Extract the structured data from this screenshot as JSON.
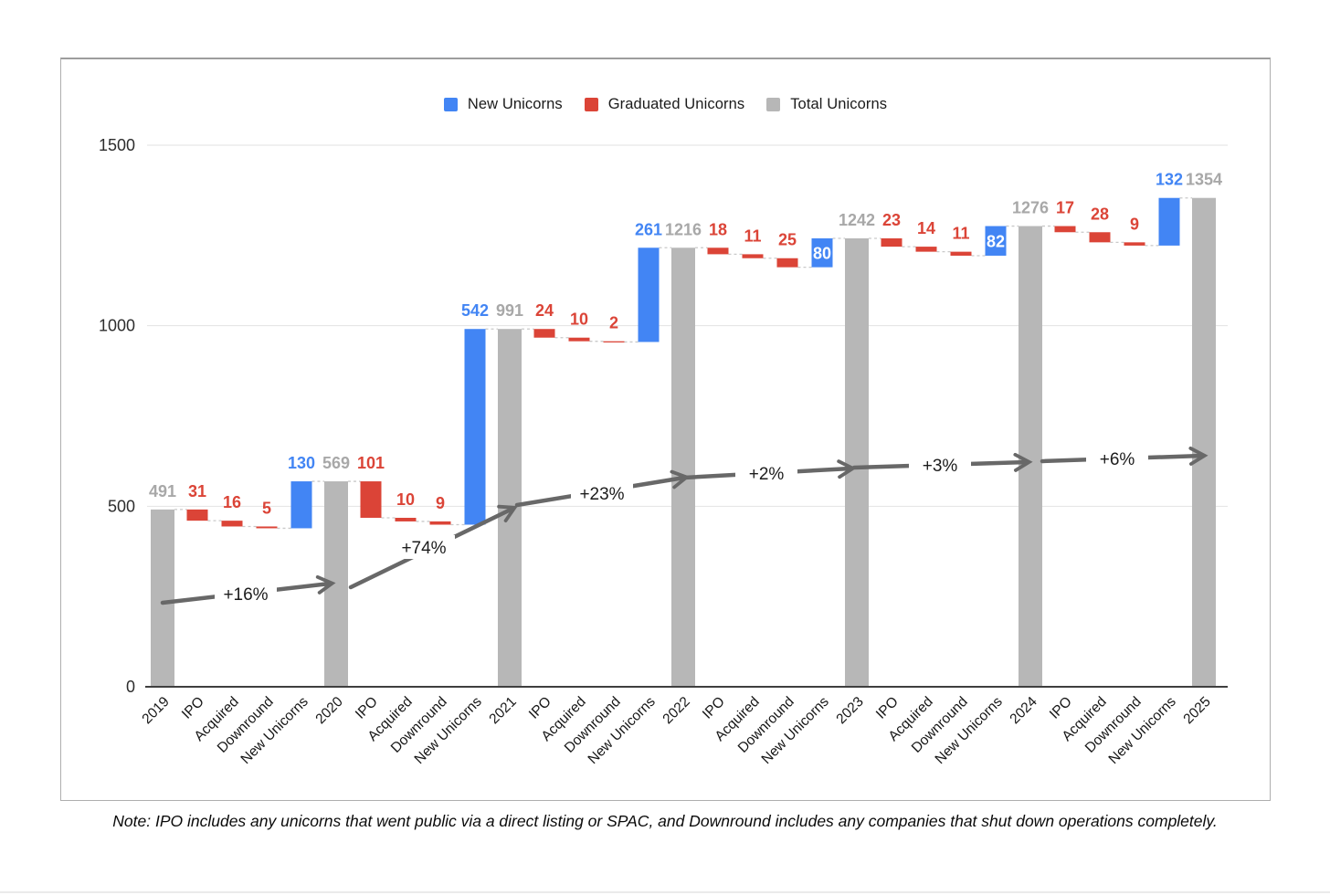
{
  "page": {
    "note": "Note: IPO includes any unicorns that went public via a direct listing or SPAC, and Downround includes any companies that shut down operations completely."
  },
  "legend": [
    {
      "label": "New Unicorns",
      "color": "#4285F4"
    },
    {
      "label": "Graduated Unicorns",
      "color": "#DB4437"
    },
    {
      "label": "Total Unicorns",
      "color": "#B7B7B7"
    }
  ],
  "chart_data": {
    "type": "bar",
    "subtype": "waterfall",
    "title": "",
    "xlabel": "",
    "ylabel": "",
    "ylim": [
      0,
      1500
    ],
    "yticks": [
      0,
      500,
      1000,
      1500
    ],
    "grid": true,
    "legend_position": "top",
    "colors": {
      "new_unicorns": "#4285F4",
      "graduated_unicorns": "#DB4437",
      "total_unicorns": "#B7B7B7",
      "total_label": "#A8A8A8",
      "new_label": "#4285F4",
      "graduated_label": "#DB4437",
      "arrow": "#686868",
      "gridline": "#e2e2e2",
      "axis": "#3f3f3f",
      "connector": "#c9c9c9"
    },
    "years": [
      {
        "year": "2019",
        "total": 491
      },
      {
        "year": "2020",
        "total": 569,
        "growth": "+16%",
        "steps": [
          {
            "label": "IPO",
            "value": 31
          },
          {
            "label": "Acquired",
            "value": 16
          },
          {
            "label": "Downround",
            "value": 5
          },
          {
            "label": "New Unicorns",
            "value": 130
          }
        ]
      },
      {
        "year": "2021",
        "total": 991,
        "growth": "+74%",
        "steps": [
          {
            "label": "IPO",
            "value": 101
          },
          {
            "label": "Acquired",
            "value": 10
          },
          {
            "label": "Downround",
            "value": 9
          },
          {
            "label": "New Unicorns",
            "value": 542
          }
        ]
      },
      {
        "year": "2022",
        "total": 1216,
        "growth": "+23%",
        "steps": [
          {
            "label": "IPO",
            "value": 24
          },
          {
            "label": "Acquired",
            "value": 10
          },
          {
            "label": "Downround",
            "value": 2
          },
          {
            "label": "New Unicorns",
            "value": 261
          }
        ]
      },
      {
        "year": "2023",
        "total": 1242,
        "growth": "+2%",
        "steps": [
          {
            "label": "IPO",
            "value": 18
          },
          {
            "label": "Acquired",
            "value": 11
          },
          {
            "label": "Downround",
            "value": 25
          },
          {
            "label": "New Unicorns",
            "value": 80
          }
        ]
      },
      {
        "year": "2024",
        "total": 1276,
        "growth": "+3%",
        "steps": [
          {
            "label": "IPO",
            "value": 23
          },
          {
            "label": "Acquired",
            "value": 14
          },
          {
            "label": "Downround",
            "value": 11
          },
          {
            "label": "New Unicorns",
            "value": 82
          }
        ]
      },
      {
        "year": "2025",
        "total": 1354,
        "growth": "+6%",
        "steps": [
          {
            "label": "IPO",
            "value": 17
          },
          {
            "label": "Acquired",
            "value": 28
          },
          {
            "label": "Downround",
            "value": 9
          },
          {
            "label": "New Unicorns",
            "value": 132
          }
        ]
      }
    ]
  }
}
